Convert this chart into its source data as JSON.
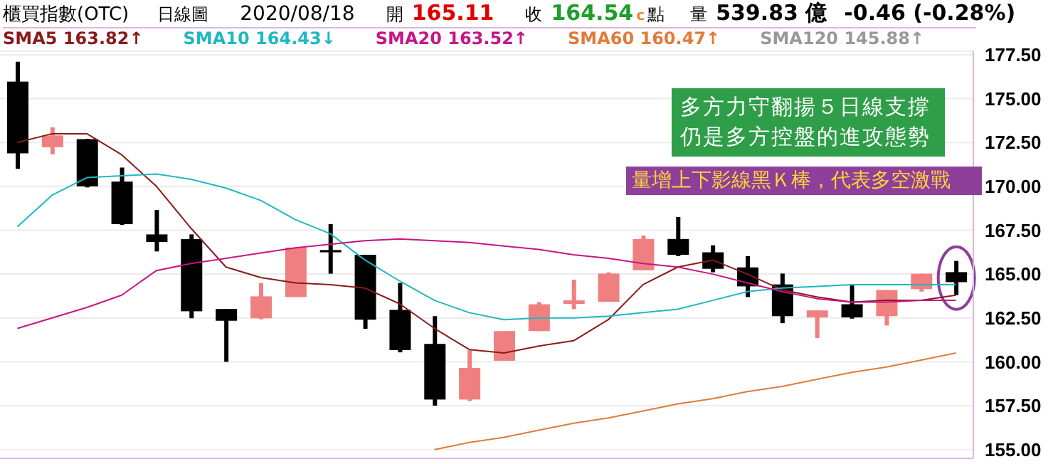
{
  "chart_data": {
    "type": "candlestick",
    "title": "櫃買指數(OTC)",
    "subtitle": "日線圖",
    "annotations": [
      "2020/08/18",
      "開",
      "165.11",
      "收",
      "164.54",
      "c",
      "點",
      "量",
      "539.83 億",
      "-0.46 (-0.28%)",
      "多方力守翻揚５日線支撐仍是多方控盤的進攻態勢",
      "量增上下影線黑Ｋ棒，代表多空激戰"
    ],
    "categories": [
      null,
      null,
      null,
      null,
      null,
      null,
      null,
      null,
      null,
      null,
      null,
      null,
      null,
      null,
      null,
      null,
      null,
      null,
      null,
      null,
      null,
      null,
      null,
      null,
      null,
      null,
      null,
      null
    ],
    "ohlc": [
      [
        175.97,
        177.1,
        171.0,
        171.88
      ],
      [
        172.23,
        173.36,
        171.83,
        172.9
      ],
      [
        172.69,
        172.7,
        169.94,
        170.0
      ],
      [
        170.27,
        171.07,
        167.8,
        167.85
      ],
      [
        167.26,
        168.65,
        166.29,
        166.83
      ],
      [
        166.99,
        167.26,
        162.48,
        162.88
      ],
      [
        163.01,
        163.01,
        160.0,
        162.34
      ],
      [
        162.48,
        164.49,
        162.42,
        163.73
      ],
      [
        163.69,
        166.51,
        163.69,
        166.51
      ],
      [
        166.37,
        167.85,
        165.02,
        166.24
      ],
      [
        166.1,
        166.1,
        161.88,
        162.4
      ],
      [
        162.96,
        164.49,
        160.54,
        160.67
      ],
      [
        161.02,
        162.6,
        157.5,
        157.85
      ],
      [
        157.85,
        160.65,
        157.77,
        159.65
      ],
      [
        160.06,
        161.75,
        160.06,
        161.75
      ],
      [
        161.75,
        163.4,
        161.75,
        163.28
      ],
      [
        163.3,
        164.68,
        163.0,
        163.5
      ],
      [
        163.42,
        165.1,
        163.42,
        165.03
      ],
      [
        165.22,
        167.2,
        165.22,
        167.0
      ],
      [
        167.0,
        168.25,
        166.02,
        166.1
      ],
      [
        166.24,
        166.64,
        165.1,
        165.3
      ],
      [
        165.38,
        166.02,
        163.69,
        164.3
      ],
      [
        164.41,
        165.03,
        162.2,
        162.6
      ],
      [
        162.53,
        162.93,
        161.35,
        162.93
      ],
      [
        163.28,
        164.35,
        162.46,
        162.53
      ],
      [
        162.6,
        164.09,
        162.07,
        164.09
      ],
      [
        164.14,
        165.02,
        164.0,
        165.02
      ],
      [
        165.11,
        165.75,
        163.8,
        164.54
      ]
    ],
    "colors": [
      "#000000",
      "#f08080",
      "#000000",
      "#000000",
      "#000000",
      "#000000",
      "#000000",
      "#f08080",
      "#f08080",
      "#000000",
      "#000000",
      "#000000",
      "#000000",
      "#f08080",
      "#f08080",
      "#f08080",
      "#f08080",
      "#f08080",
      "#f08080",
      "#000000",
      "#000000",
      "#000000",
      "#000000",
      "#f08080",
      "#000000",
      "#f08080",
      "#f08080",
      "#000000"
    ],
    "series": [
      {
        "name": "SMA5 163.82↑",
        "type": "line",
        "color": "#8b1a1a",
        "values": [
          172.5,
          173.0,
          173.0,
          171.8,
          170.0,
          167.6,
          165.4,
          164.8,
          164.5,
          164.4,
          164.2,
          163.3,
          161.9,
          160.7,
          160.5,
          160.9,
          161.2,
          162.4,
          164.4,
          165.4,
          165.8,
          165.0,
          164.1,
          163.7,
          163.4,
          163.5,
          163.5,
          163.8
        ]
      },
      {
        "name": "SMA10 164.43↓",
        "type": "line",
        "color": "#20b8c0",
        "values": [
          167.7,
          169.5,
          170.5,
          170.6,
          170.7,
          170.4,
          169.9,
          169.2,
          168.1,
          167.3,
          165.8,
          164.6,
          163.5,
          162.8,
          162.4,
          162.5,
          162.5,
          162.6,
          162.8,
          163.0,
          163.5,
          164.0,
          164.2,
          164.3,
          164.4,
          164.4,
          164.4,
          164.4
        ]
      },
      {
        "name": "SMA20 163.52↑",
        "type": "line",
        "color": "#c71585",
        "values": [
          161.9,
          162.5,
          163.1,
          163.8,
          165.2,
          165.6,
          165.9,
          166.2,
          166.5,
          166.7,
          166.9,
          167.0,
          166.9,
          166.8,
          166.6,
          166.4,
          166.1,
          165.9,
          165.6,
          165.4,
          165.0,
          164.5,
          164.0,
          163.6,
          163.4,
          163.4,
          163.5,
          163.5
        ]
      },
      {
        "name": "SMA60 160.47↑",
        "type": "line",
        "color": "#e07b39",
        "values": [
          null,
          null,
          null,
          null,
          null,
          null,
          null,
          null,
          null,
          null,
          null,
          null,
          155.0,
          155.4,
          155.7,
          156.1,
          156.5,
          156.8,
          157.2,
          157.6,
          157.9,
          158.3,
          158.6,
          159.0,
          159.4,
          159.7,
          160.1,
          160.5
        ]
      },
      {
        "name": "SMA120 145.88↑",
        "type": "line",
        "color": "#999999",
        "values": [
          null,
          null,
          null,
          null,
          null,
          null,
          null,
          null,
          null,
          null,
          null,
          null,
          null,
          null,
          null,
          null,
          null,
          null,
          null,
          null,
          null,
          null,
          null,
          null,
          null,
          null,
          null,
          null
        ]
      }
    ],
    "ylim": [
      154.5,
      177.7
    ],
    "yticks": [
      {
        "value": 155,
        "label": "155.00"
      },
      {
        "value": 157.5,
        "label": "157.50"
      },
      {
        "value": 160,
        "label": "160.00"
      },
      {
        "value": 162.5,
        "label": "162.50"
      },
      {
        "value": 165,
        "label": "165.00"
      },
      {
        "value": 167.5,
        "label": "167.50"
      },
      {
        "value": 170,
        "label": "170.00"
      },
      {
        "value": 172.5,
        "label": "172.50"
      },
      {
        "value": 175,
        "label": "175.00"
      },
      {
        "value": 177.5,
        "label": "177.50"
      }
    ],
    "tick_labels": "y",
    "grid": "y",
    "legend": "top"
  }
}
